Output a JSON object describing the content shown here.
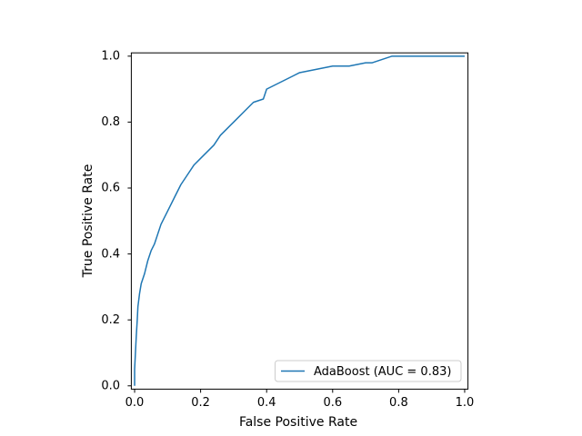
{
  "chart_data": {
    "type": "line",
    "title": "",
    "xlabel": "False Positive Rate",
    "ylabel": "True Positive Rate",
    "xlim": [
      -0.01,
      1.01
    ],
    "ylim": [
      -0.01,
      1.01
    ],
    "xticks": [
      0.0,
      0.2,
      0.4,
      0.6,
      0.8,
      1.0
    ],
    "yticks": [
      0.0,
      0.2,
      0.4,
      0.6,
      0.8,
      1.0
    ],
    "xtick_labels": [
      "0.0",
      "0.2",
      "0.4",
      "0.6",
      "0.8",
      "1.0"
    ],
    "ytick_labels": [
      "0.0",
      "0.2",
      "0.4",
      "0.6",
      "0.8",
      "1.0"
    ],
    "grid": false,
    "legend_position": "lower-right",
    "series": [
      {
        "name": "AdaBoost (AUC = 0.83)",
        "color": "#1f77b4",
        "x": [
          0.0,
          0.0,
          0.005,
          0.008,
          0.01,
          0.015,
          0.02,
          0.03,
          0.04,
          0.05,
          0.06,
          0.07,
          0.08,
          0.1,
          0.12,
          0.14,
          0.16,
          0.18,
          0.2,
          0.22,
          0.24,
          0.26,
          0.28,
          0.3,
          0.33,
          0.36,
          0.39,
          0.4,
          0.42,
          0.44,
          0.46,
          0.48,
          0.5,
          0.55,
          0.6,
          0.65,
          0.7,
          0.72,
          0.75,
          0.78,
          0.85,
          0.9,
          0.95,
          0.98,
          1.0
        ],
        "y": [
          0.0,
          0.05,
          0.15,
          0.2,
          0.24,
          0.28,
          0.31,
          0.34,
          0.38,
          0.41,
          0.43,
          0.46,
          0.49,
          0.53,
          0.57,
          0.61,
          0.64,
          0.67,
          0.69,
          0.71,
          0.73,
          0.76,
          0.78,
          0.8,
          0.83,
          0.86,
          0.87,
          0.9,
          0.91,
          0.92,
          0.93,
          0.94,
          0.95,
          0.96,
          0.97,
          0.97,
          0.98,
          0.98,
          0.99,
          1.0,
          1.0,
          1.0,
          1.0,
          1.0,
          1.0
        ]
      }
    ]
  }
}
